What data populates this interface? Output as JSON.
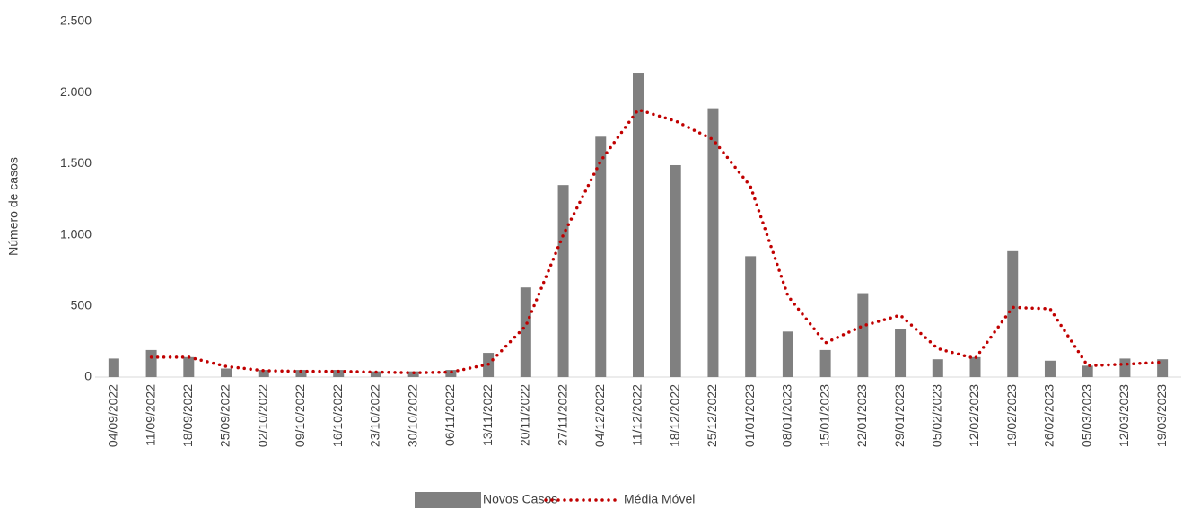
{
  "chart_data": {
    "type": "bar_line",
    "y_label": "Número de casos",
    "categories": [
      "04/09/2022",
      "11/09/2022",
      "18/09/2022",
      "25/09/2022",
      "02/10/2022",
      "09/10/2022",
      "16/10/2022",
      "23/10/2022",
      "30/10/2022",
      "06/11/2022",
      "13/11/2022",
      "20/11/2022",
      "27/11/2022",
      "04/12/2022",
      "11/12/2022",
      "18/12/2022",
      "25/12/2022",
      "01/01/2023",
      "08/01/2023",
      "15/01/2023",
      "22/01/2023",
      "29/01/2023",
      "05/02/2023",
      "12/02/2023",
      "19/02/2023",
      "26/02/2023",
      "05/03/2023",
      "12/03/2023",
      "19/03/2023"
    ],
    "series": [
      {
        "name": "Novos Casos",
        "type": "bar",
        "color": "#808080",
        "values": [
          130,
          190,
          140,
          60,
          50,
          50,
          50,
          40,
          40,
          50,
          170,
          630,
          1350,
          1690,
          2140,
          1490,
          1890,
          850,
          320,
          190,
          590,
          335,
          125,
          140,
          885,
          115,
          80,
          130,
          125
        ]
      },
      {
        "name": "Média Móvel",
        "type": "line",
        "color": "#c00000",
        "values": [
          null,
          140,
          140,
          75,
          45,
          40,
          40,
          35,
          30,
          35,
          90,
          360,
          1000,
          1520,
          1880,
          1800,
          1670,
          1340,
          570,
          240,
          360,
          435,
          200,
          130,
          490,
          480,
          80,
          90,
          105
        ]
      }
    ],
    "ylim": [
      0,
      2500
    ],
    "yticks": [
      0,
      500,
      {
        "value": 1000,
        "label": "1.000"
      },
      {
        "value": 1500,
        "label": "1.500"
      },
      {
        "value": 2000,
        "label": "2.000"
      },
      {
        "value": 2500,
        "label": "2.500"
      }
    ],
    "legend": "bottom"
  }
}
